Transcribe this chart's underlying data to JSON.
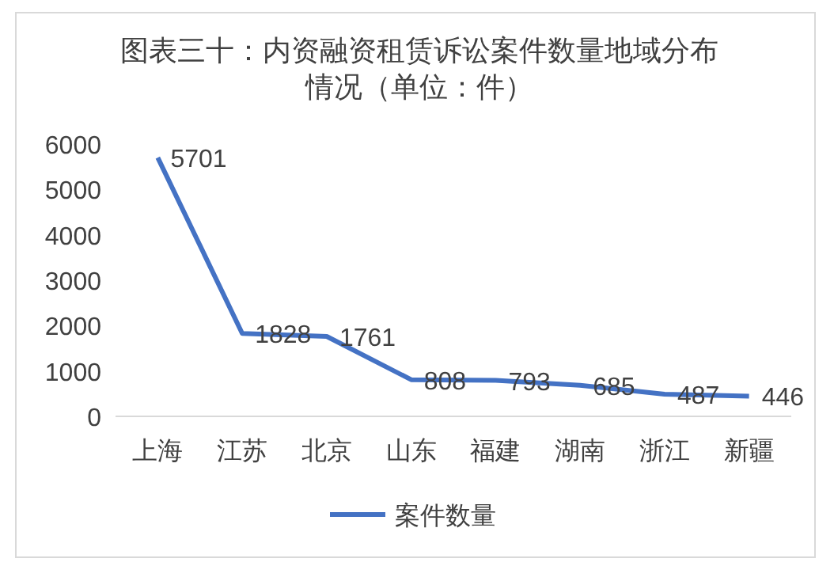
{
  "chart_data": {
    "type": "line",
    "title": "图表三十：内资融资租赁诉讼案件数量地域分布情况（单位：件）",
    "categories": [
      "上海",
      "江苏",
      "北京",
      "山东",
      "福建",
      "湖南",
      "浙江",
      "新疆"
    ],
    "series": [
      {
        "name": "案件数量",
        "color": "#4472c4",
        "values": [
          5701,
          1828,
          1761,
          808,
          793,
          685,
          487,
          446
        ]
      }
    ],
    "ylim": [
      0,
      6000
    ],
    "yticks": [
      0,
      1000,
      2000,
      3000,
      4000,
      5000,
      6000
    ],
    "grid": false,
    "legend": "bottom",
    "data_labels": true,
    "marker": "none",
    "line_style": "solid"
  }
}
